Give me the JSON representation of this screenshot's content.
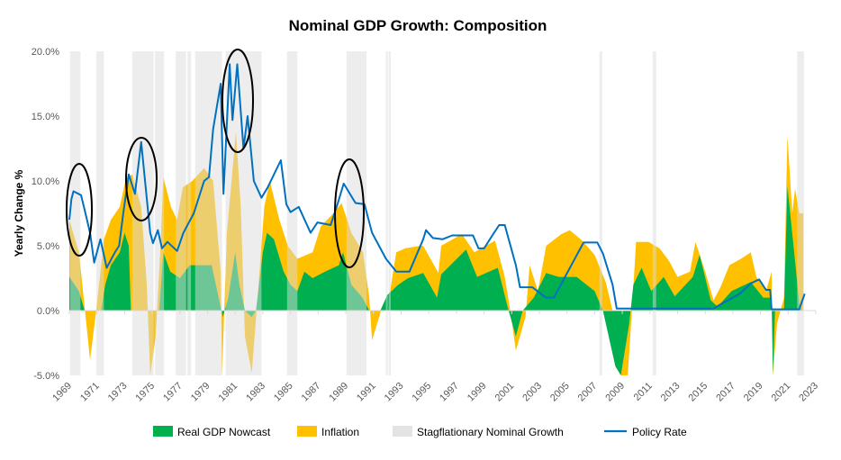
{
  "chart_data": {
    "type": "area",
    "title": "Nominal GDP Growth: Composition",
    "xlabel": "",
    "ylabel": "Yearly Change %",
    "xlim": [
      1969,
      2023
    ],
    "ylim": [
      -5,
      20
    ],
    "y_ticks": [
      -5,
      0,
      5,
      10,
      15,
      20
    ],
    "y_tick_labels": [
      "-5.0%",
      "0.0%",
      "5.0%",
      "10.0%",
      "15.0%",
      "20.0%"
    ],
    "x_tick_labels": [
      "1969",
      "1971",
      "1973",
      "1975",
      "1977",
      "1979",
      "1981",
      "1983",
      "1985",
      "1987",
      "1989",
      "1991",
      "1993",
      "1995",
      "1997",
      "1999",
      "2001",
      "2003",
      "2005",
      "2007",
      "2009",
      "2011",
      "2013",
      "2015",
      "2017",
      "2019",
      "2021",
      "2023"
    ],
    "legend_position": "bottom",
    "colors": {
      "real": "#00b050",
      "inflation": "#ffc000",
      "stagflation": "#e3e3e3",
      "policy": "#0070c0"
    },
    "series": [
      {
        "name": "Inflation",
        "note": "stacked top = nominal growth",
        "points": [
          [
            1969,
            7
          ],
          [
            1969.7,
            4.5
          ],
          [
            1970.5,
            -3.8
          ],
          [
            1970.95,
            0
          ],
          [
            1971.5,
            5.5
          ],
          [
            1972,
            7
          ],
          [
            1972.65,
            8
          ],
          [
            1973.1,
            10.2
          ],
          [
            1973.55,
            10.5
          ],
          [
            1974.2,
            8
          ],
          [
            1974.6,
            2
          ],
          [
            1974.85,
            -5
          ],
          [
            1975.25,
            -2
          ],
          [
            1975.6,
            5
          ],
          [
            1975.8,
            10.3
          ],
          [
            1976.35,
            8
          ],
          [
            1976.8,
            7
          ],
          [
            1977.2,
            9.5
          ],
          [
            1977.9,
            10
          ],
          [
            1978.75,
            11
          ],
          [
            1979.4,
            10
          ],
          [
            1979.95,
            3
          ],
          [
            1980.05,
            -5
          ],
          [
            1980.4,
            6
          ],
          [
            1981.05,
            13.8
          ],
          [
            1981.4,
            8
          ],
          [
            1981.7,
            -2
          ],
          [
            1982.2,
            -4.8
          ],
          [
            1982.55,
            0
          ],
          [
            1983.1,
            8
          ],
          [
            1983.5,
            10
          ],
          [
            1984.2,
            7
          ],
          [
            1984.8,
            5
          ],
          [
            1985.5,
            4
          ],
          [
            1986.6,
            4.5
          ],
          [
            1987.2,
            6.5
          ],
          [
            1988.1,
            7.5
          ],
          [
            1988.7,
            8.3
          ],
          [
            1989.4,
            6
          ],
          [
            1990.25,
            4.5
          ],
          [
            1990.7,
            1
          ],
          [
            1990.9,
            -2.3
          ],
          [
            1991.55,
            0
          ],
          [
            1992.2,
            1.5
          ],
          [
            1992.65,
            4.5
          ],
          [
            1993.3,
            4.8
          ],
          [
            1994.4,
            5
          ],
          [
            1994.6,
            5
          ],
          [
            1995.7,
            2.9
          ],
          [
            1995.9,
            5
          ],
          [
            1997.4,
            5.9
          ],
          [
            1998.3,
            4.5
          ],
          [
            1999.8,
            5.4
          ],
          [
            2000.5,
            2.6
          ],
          [
            2000.9,
            0
          ],
          [
            2001.3,
            -3.1
          ],
          [
            2002,
            -0.5
          ],
          [
            2002.3,
            3.5
          ],
          [
            2002.9,
            1.5
          ],
          [
            2003.5,
            5
          ],
          [
            2004.6,
            5.9
          ],
          [
            2005.2,
            6.2
          ],
          [
            2006.1,
            5.4
          ],
          [
            2007,
            4.3
          ],
          [
            2007.8,
            2.2
          ],
          [
            2008.3,
            0
          ],
          [
            2008.9,
            -5
          ],
          [
            2009.4,
            -5
          ],
          [
            2009.7,
            0
          ],
          [
            2010,
            5.3
          ],
          [
            2010.9,
            5.3
          ],
          [
            2011.7,
            4.8
          ],
          [
            2012.4,
            3.8
          ],
          [
            2013,
            2.6
          ],
          [
            2013.9,
            3
          ],
          [
            2014.3,
            5.3
          ],
          [
            2015,
            3
          ],
          [
            2015.6,
            0.8
          ],
          [
            2016.1,
            1.8
          ],
          [
            2016.75,
            3.5
          ],
          [
            2017.6,
            4
          ],
          [
            2018.3,
            4.5
          ],
          [
            2018.7,
            2.6
          ],
          [
            2019.4,
            1.5
          ],
          [
            2019.8,
            3
          ],
          [
            2019.9,
            -5
          ],
          [
            2020.2,
            -1
          ],
          [
            2020.7,
            1
          ],
          [
            2020.95,
            13.5
          ],
          [
            2021.3,
            7.5
          ],
          [
            2021.5,
            9.4
          ],
          [
            2021.8,
            7.5
          ],
          [
            2022.1,
            7.5
          ]
        ]
      },
      {
        "name": "Real GDP Nowcast",
        "points": [
          [
            1969,
            2.6
          ],
          [
            1969.7,
            1.5
          ],
          [
            1970.1,
            0
          ],
          [
            1971.3,
            0
          ],
          [
            1971.6,
            2
          ],
          [
            1972,
            3.5
          ],
          [
            1972.65,
            4.5
          ],
          [
            1973,
            6
          ],
          [
            1973.3,
            5
          ],
          [
            1973.45,
            0
          ],
          [
            1975.5,
            0
          ],
          [
            1975.8,
            4.5
          ],
          [
            1976.3,
            3
          ],
          [
            1977,
            2.5
          ],
          [
            1977.7,
            3.5
          ],
          [
            1978.7,
            3.5
          ],
          [
            1979.3,
            3.5
          ],
          [
            1979.8,
            1
          ],
          [
            1980.1,
            -0.5
          ],
          [
            1980.5,
            1
          ],
          [
            1981,
            4.5
          ],
          [
            1981.3,
            2
          ],
          [
            1981.7,
            0
          ],
          [
            1982.2,
            -0.5
          ],
          [
            1982.5,
            0
          ],
          [
            1983,
            4.5
          ],
          [
            1983.3,
            6
          ],
          [
            1983.8,
            5.5
          ],
          [
            1984.5,
            3
          ],
          [
            1985,
            2
          ],
          [
            1985.5,
            1.5
          ],
          [
            1986,
            3
          ],
          [
            1986.6,
            2.5
          ],
          [
            1987.5,
            3
          ],
          [
            1988.5,
            3.5
          ],
          [
            1988.8,
            4.5
          ],
          [
            1989.4,
            2
          ],
          [
            1990.2,
            1
          ],
          [
            1990.7,
            0
          ],
          [
            1991.5,
            0
          ],
          [
            1992,
            1.2
          ],
          [
            1992.8,
            2
          ],
          [
            1993.5,
            2.5
          ],
          [
            1994.6,
            2.9
          ],
          [
            1995.6,
            1
          ],
          [
            1995.9,
            2.8
          ],
          [
            1997.7,
            4.7
          ],
          [
            1998.5,
            2.6
          ],
          [
            2000,
            3.3
          ],
          [
            2000.7,
            0.3
          ],
          [
            2001.3,
            -2
          ],
          [
            2001.8,
            0
          ],
          [
            2002.6,
            1
          ],
          [
            2003.5,
            2.9
          ],
          [
            2004.4,
            2.6
          ],
          [
            2005.7,
            2.6
          ],
          [
            2007,
            1.5
          ],
          [
            2007.6,
            0
          ],
          [
            2008.5,
            -4.3
          ],
          [
            2008.9,
            -5
          ],
          [
            2009.5,
            -1
          ],
          [
            2009.8,
            2
          ],
          [
            2010.4,
            3.3
          ],
          [
            2011.1,
            1.5
          ],
          [
            2012,
            2.6
          ],
          [
            2012.8,
            1.1
          ],
          [
            2014.1,
            2.6
          ],
          [
            2014.6,
            4.3
          ],
          [
            2015.4,
            0.8
          ],
          [
            2015.9,
            0.3
          ],
          [
            2016.9,
            1.5
          ],
          [
            2018.3,
            2.2
          ],
          [
            2019.2,
            1
          ],
          [
            2019.8,
            1
          ],
          [
            2019.9,
            -5
          ],
          [
            2020.05,
            0
          ],
          [
            2020.7,
            0
          ],
          [
            2020.95,
            9.6
          ],
          [
            2021.5,
            3.8
          ],
          [
            2021.8,
            0.5
          ],
          [
            2022,
            0
          ]
        ]
      },
      {
        "name": "Policy Rate",
        "points": [
          [
            1969,
            7
          ],
          [
            1969.15,
            8.6
          ],
          [
            1969.3,
            9.2
          ],
          [
            1969.85,
            8.9
          ],
          [
            1970.1,
            7.8
          ],
          [
            1970.5,
            6
          ],
          [
            1970.8,
            3.7
          ],
          [
            1971.25,
            5.5
          ],
          [
            1971.7,
            3.3
          ],
          [
            1972.3,
            4.5
          ],
          [
            1972.6,
            5
          ],
          [
            1972.9,
            7.5
          ],
          [
            1973.3,
            10.5
          ],
          [
            1973.75,
            9
          ],
          [
            1974.2,
            13
          ],
          [
            1974.85,
            6
          ],
          [
            1975.05,
            5.2
          ],
          [
            1975.4,
            6.2
          ],
          [
            1975.7,
            4.8
          ],
          [
            1976.1,
            5.3
          ],
          [
            1976.8,
            4.6
          ],
          [
            1977.25,
            6
          ],
          [
            1978,
            7.5
          ],
          [
            1978.75,
            10
          ],
          [
            1979.1,
            10.3
          ],
          [
            1979.4,
            14
          ],
          [
            1979.95,
            17.5
          ],
          [
            1980.15,
            9
          ],
          [
            1980.6,
            19
          ],
          [
            1980.8,
            14.7
          ],
          [
            1981.15,
            19
          ],
          [
            1981.6,
            12.5
          ],
          [
            1981.9,
            15
          ],
          [
            1982.35,
            10
          ],
          [
            1982.9,
            8.7
          ],
          [
            1983.35,
            9.5
          ],
          [
            1984.3,
            11.6
          ],
          [
            1984.7,
            8.2
          ],
          [
            1985,
            7.6
          ],
          [
            1985.6,
            8
          ],
          [
            1986.45,
            6
          ],
          [
            1986.95,
            6.8
          ],
          [
            1987.9,
            6.6
          ],
          [
            1988.4,
            8.2
          ],
          [
            1988.85,
            9.8
          ],
          [
            1989.7,
            8.3
          ],
          [
            1990.35,
            8.2
          ],
          [
            1990.9,
            6
          ],
          [
            1991.9,
            4
          ],
          [
            1992.65,
            3
          ],
          [
            1993.6,
            3
          ],
          [
            1994.6,
            5.5
          ],
          [
            1994.8,
            6.2
          ],
          [
            1995.3,
            5.6
          ],
          [
            1996,
            5.5
          ],
          [
            1996.7,
            5.8
          ],
          [
            1998.2,
            5.8
          ],
          [
            1998.6,
            4.8
          ],
          [
            1999,
            4.8
          ],
          [
            1999.6,
            5.8
          ],
          [
            2000.1,
            6.6
          ],
          [
            2000.5,
            6.6
          ],
          [
            2001.3,
            3.5
          ],
          [
            2001.6,
            1.8
          ],
          [
            2002.5,
            1.8
          ],
          [
            2003.1,
            1.3
          ],
          [
            2003.5,
            1
          ],
          [
            2004.05,
            1
          ],
          [
            2006.2,
            5.25
          ],
          [
            2007.2,
            5.25
          ],
          [
            2007.6,
            4.4
          ],
          [
            2008.3,
            2
          ],
          [
            2008.6,
            0.15
          ],
          [
            2015.6,
            0.15
          ],
          [
            2016.3,
            0.6
          ],
          [
            2017,
            1
          ],
          [
            2017.5,
            1.3
          ],
          [
            2018.3,
            2.1
          ],
          [
            2018.9,
            2.4
          ],
          [
            2019.4,
            1.6
          ],
          [
            2019.7,
            1.6
          ],
          [
            2019.8,
            0.1
          ],
          [
            2021.8,
            0.1
          ],
          [
            2022.2,
            1.3
          ]
        ]
      }
    ],
    "stagflation_periods": [
      [
        1969.05,
        1969.8
      ],
      [
        1970.95,
        1971.5
      ],
      [
        1973.55,
        1975.1
      ],
      [
        1975.2,
        1975.85
      ],
      [
        1976.7,
        1977.45
      ],
      [
        1977.55,
        1977.8
      ],
      [
        1978.1,
        1980.05
      ],
      [
        1980.3,
        1982.9
      ],
      [
        1984.75,
        1985.5
      ],
      [
        1989.05,
        1990.5
      ],
      [
        1991.9,
        1992.0
      ],
      [
        1992.1,
        1992.25
      ],
      [
        2007.35,
        2007.55
      ],
      [
        2011.2,
        2011.45
      ],
      [
        2021.65,
        2022.15
      ]
    ],
    "legend": [
      "Real GDP Nowcast",
      "Inflation",
      "Stagflationary Nominal Growth",
      "Policy Rate"
    ]
  }
}
